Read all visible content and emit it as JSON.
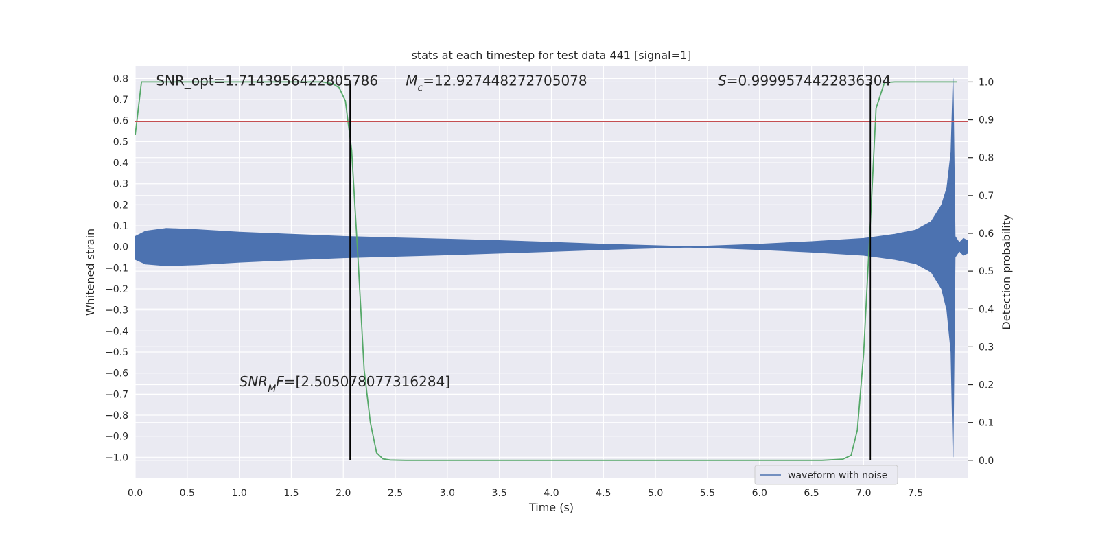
{
  "chart_data": {
    "type": "line",
    "title": "stats at each timestep for test data 441 [signal=1]",
    "xlabel": "Time (s)",
    "ylabel": "Whitened strain",
    "y2label": "Detection probability",
    "xlim": [
      0,
      8
    ],
    "ylim": [
      -1.1,
      0.86
    ],
    "y2lim": [
      -0.0475,
      1.0425
    ],
    "xticks": [
      0.0,
      0.5,
      1.0,
      1.5,
      2.0,
      2.5,
      3.0,
      3.5,
      4.0,
      4.5,
      5.0,
      5.5,
      6.0,
      6.5,
      7.0,
      7.5
    ],
    "xtick_labels": [
      "0.0",
      "0.5",
      "1.0",
      "1.5",
      "2.0",
      "2.5",
      "3.0",
      "3.5",
      "4.0",
      "4.5",
      "5.0",
      "5.5",
      "6.0",
      "6.5",
      "7.0",
      "7.5"
    ],
    "yticks": [
      0.8,
      0.7,
      0.6,
      0.5,
      0.4,
      0.3,
      0.2,
      0.1,
      0.0,
      -0.1,
      -0.2,
      -0.3,
      -0.4,
      -0.5,
      -0.6,
      -0.7,
      -0.8,
      -0.9,
      -1.0
    ],
    "ytick_labels": [
      "0.8",
      "0.7",
      "0.6",
      "0.5",
      "0.4",
      "0.3",
      "0.2",
      "0.1",
      "0.0",
      "−0.1",
      "−0.2",
      "−0.3",
      "−0.4",
      "−0.5",
      "−0.6",
      "−0.7",
      "−0.8",
      "−0.9",
      "−1.0"
    ],
    "y2ticks": [
      1.0,
      0.9,
      0.8,
      0.7,
      0.6,
      0.5,
      0.4,
      0.3,
      0.2,
      0.1,
      0.0
    ],
    "y2tick_labels": [
      "1.0",
      "0.9",
      "0.8",
      "0.7",
      "0.6",
      "0.5",
      "0.4",
      "0.3",
      "0.2",
      "0.1",
      "0.0"
    ],
    "grid": true,
    "legend": {
      "position": "lower-right",
      "entries": [
        "waveform with noise"
      ]
    },
    "series": [
      {
        "name": "waveform with noise",
        "color": "#4c72b0",
        "kind": "oscillating-envelope",
        "envelope": {
          "t": [
            0.0,
            0.1,
            0.3,
            0.6,
            1.0,
            1.5,
            2.0,
            2.5,
            3.0,
            3.5,
            4.0,
            4.5,
            5.0,
            5.3,
            5.5,
            6.0,
            6.5,
            7.0,
            7.3,
            7.5,
            7.65,
            7.75,
            7.8,
            7.84,
            7.86,
            7.88,
            7.92,
            7.96,
            8.0
          ],
          "upper": [
            0.05,
            0.075,
            0.088,
            0.082,
            0.07,
            0.06,
            0.05,
            0.043,
            0.037,
            0.03,
            0.022,
            0.013,
            0.006,
            0.002,
            0.004,
            0.013,
            0.025,
            0.04,
            0.06,
            0.08,
            0.12,
            0.2,
            0.28,
            0.45,
            0.8,
            0.05,
            0.02,
            0.04,
            0.03
          ],
          "lower": [
            -0.06,
            -0.082,
            -0.09,
            -0.085,
            -0.073,
            -0.062,
            -0.052,
            -0.045,
            -0.038,
            -0.03,
            -0.022,
            -0.013,
            -0.006,
            -0.002,
            -0.004,
            -0.013,
            -0.025,
            -0.04,
            -0.06,
            -0.08,
            -0.12,
            -0.2,
            -0.3,
            -0.5,
            -1.0,
            -0.05,
            -0.02,
            -0.04,
            -0.03
          ]
        }
      },
      {
        "name": "",
        "color": "#55a868",
        "axis": "right",
        "x": [
          0.0,
          0.06,
          0.12,
          0.3,
          1.0,
          1.5,
          1.8,
          1.9,
          1.96,
          2.02,
          2.08,
          2.14,
          2.2,
          2.26,
          2.32,
          2.38,
          2.45,
          2.6,
          3.0,
          4.0,
          5.0,
          6.0,
          6.6,
          6.8,
          6.88,
          6.94,
          7.0,
          7.06,
          7.12,
          7.2,
          7.3,
          7.9
        ],
        "y": [
          0.86,
          1.0,
          1.0,
          1.0,
          1.0,
          1.0,
          1.0,
          0.995,
          0.985,
          0.95,
          0.82,
          0.54,
          0.24,
          0.1,
          0.02,
          0.004,
          0.001,
          0.0,
          0.0,
          0.0,
          0.0,
          0.0,
          0.0,
          0.003,
          0.013,
          0.08,
          0.28,
          0.6,
          0.93,
          0.998,
          1.0,
          1.0
        ]
      },
      {
        "name": "",
        "color": "#c44e52",
        "kind": "hline",
        "axis": "left",
        "y": 0.595
      },
      {
        "name": "",
        "color": "#000000",
        "kind": "vline",
        "axis": "right",
        "x": [
          2.065,
          7.065
        ],
        "ymin": 0,
        "ymax": 1
      }
    ],
    "annotations": [
      {
        "id": "snr-opt",
        "text": "SNR_opt=1.7143956422805786",
        "x": 0.2,
        "y": 0.79
      },
      {
        "id": "mc",
        "prefix": "M",
        "sub": "c",
        "rest": "=12.927448272705078",
        "x": 2.6,
        "y": 0.79
      },
      {
        "id": "s",
        "prefix": "S",
        "rest": "=0.9999574422836304",
        "x": 5.6,
        "y": 0.79
      },
      {
        "id": "snr-mf",
        "prefix": "SNR",
        "sub": "M",
        "mid": "F",
        "rest": "=[2.505078077316284]",
        "x": 1.0,
        "y": -0.64
      }
    ]
  }
}
